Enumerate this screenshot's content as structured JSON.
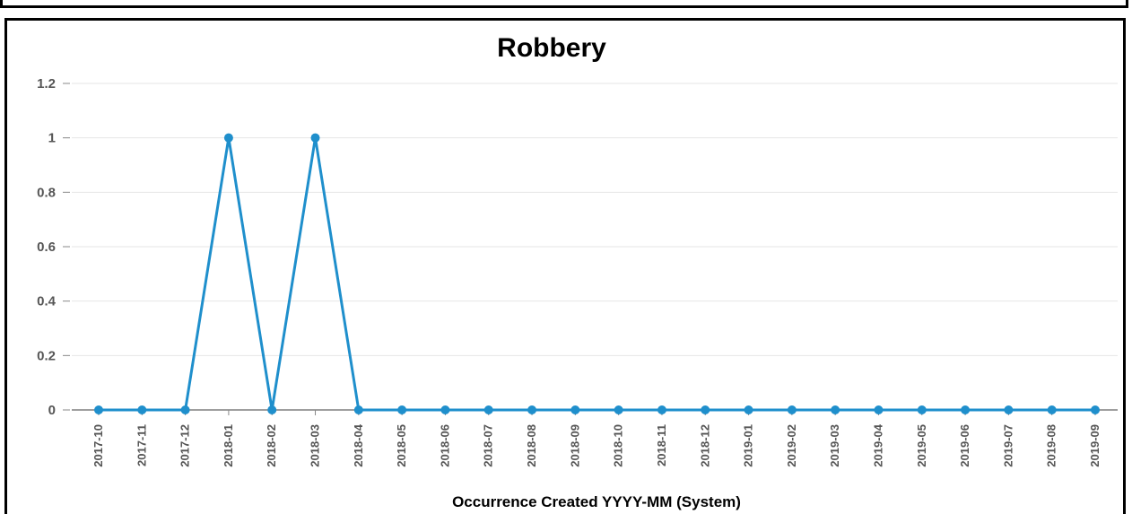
{
  "chart_data": {
    "type": "line",
    "title": "Robbery",
    "xlabel": "Occurrence Created YYYY-MM (System)",
    "ylabel": "",
    "ylim": [
      0,
      1.2
    ],
    "yticks": [
      "0",
      "0.2",
      "0.4",
      "0.6",
      "0.8",
      "1",
      "1.2"
    ],
    "grid": true,
    "categories": [
      "2017-10",
      "2017-11",
      "2017-12",
      "2018-01",
      "2018-02",
      "2018-03",
      "2018-04",
      "2018-05",
      "2018-06",
      "2018-07",
      "2018-08",
      "2018-09",
      "2018-10",
      "2018-11",
      "2018-12",
      "2019-01",
      "2019-02",
      "2019-03",
      "2019-04",
      "2019-05",
      "2019-06",
      "2019-07",
      "2019-08",
      "2019-09"
    ],
    "series": [
      {
        "values": [
          0,
          0,
          0,
          1,
          0,
          1,
          0,
          0,
          0,
          0,
          0,
          0,
          0,
          0,
          0,
          0,
          0,
          0,
          0,
          0,
          0,
          0,
          0,
          0
        ],
        "color": "#1f8fcc"
      }
    ]
  }
}
